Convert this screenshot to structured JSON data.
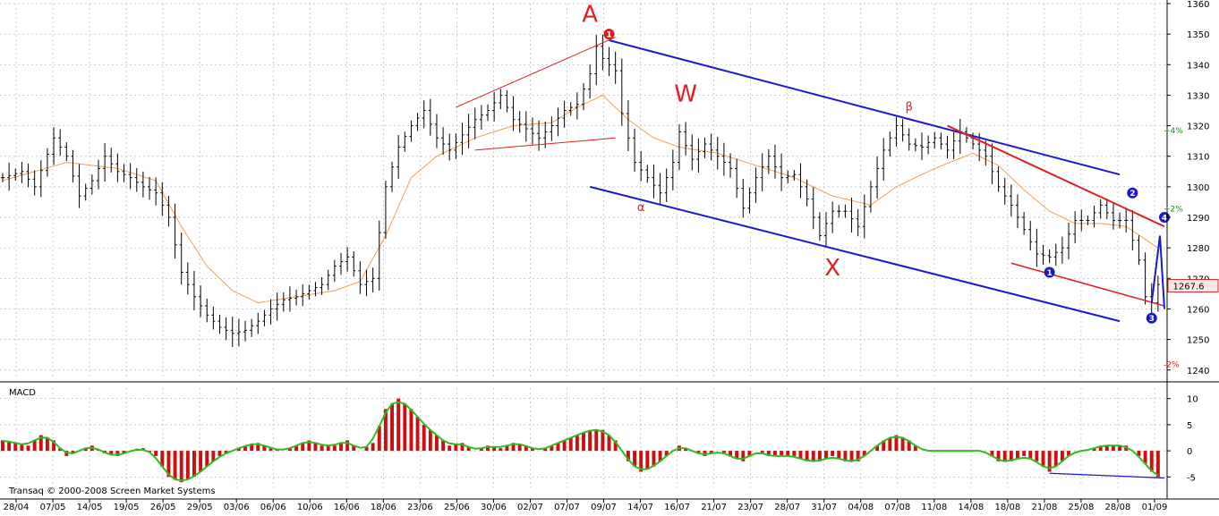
{
  "copyright": "Transaq © 2000-2008 Screen Market Systems",
  "colors": {
    "background": "#ffffff",
    "grid": "#b8b8b8",
    "candles": "#000000",
    "moving_average": "#f0a050",
    "channel_blue": "#1a1acc",
    "trend_red": "#dd2020",
    "macd_positive": "#cc1010",
    "macd_negative": "#cc1010",
    "macd_signal": "#33bb22",
    "last_price_box": "#ffe6e6"
  },
  "chart_data": [
    {
      "type": "candlestick",
      "title": "",
      "y_axis_side": "right",
      "ylim": [
        1237,
        1360
      ],
      "y_ticks": [
        1240,
        1250,
        1260,
        1270,
        1280,
        1290,
        1300,
        1310,
        1320,
        1330,
        1340,
        1350,
        1360
      ],
      "x_tick_labels": [
        "28/04",
        "07/05",
        "14/05",
        "19/05",
        "26/05",
        "29/05",
        "03/06",
        "06/06",
        "10/06",
        "16/06",
        "18/06",
        "23/06",
        "25/06",
        "30/06",
        "02/07",
        "07/07",
        "09/07",
        "14/07",
        "16/07",
        "21/07",
        "23/07",
        "28/07",
        "31/07",
        "04/08",
        "07/08",
        "11/08",
        "14/08",
        "18/08",
        "21/08",
        "25/08",
        "28/08",
        "01/09"
      ],
      "grid": true,
      "last_price": "1267.6",
      "percent_marks": [
        "+4%",
        "+2%",
        "-2%"
      ],
      "percent_mark_values": [
        1318.4,
        1292.8,
        1241.9
      ],
      "price_path": [
        [
          0,
          1303
        ],
        [
          3,
          1305
        ],
        [
          5,
          1300
        ],
        [
          8,
          1316
        ],
        [
          10,
          1310
        ],
        [
          12,
          1297
        ],
        [
          14,
          1302
        ],
        [
          16,
          1310
        ],
        [
          18,
          1305
        ],
        [
          20,
          1303
        ],
        [
          22,
          1300
        ],
        [
          24,
          1298
        ],
        [
          26,
          1290
        ],
        [
          28,
          1272
        ],
        [
          30,
          1264
        ],
        [
          32,
          1258
        ],
        [
          34,
          1254
        ],
        [
          36,
          1252
        ],
        [
          38,
          1253
        ],
        [
          40,
          1256
        ],
        [
          42,
          1260
        ],
        [
          44,
          1263
        ],
        [
          46,
          1264
        ],
        [
          48,
          1266
        ],
        [
          50,
          1268
        ],
        [
          52,
          1274
        ],
        [
          54,
          1277
        ],
        [
          56,
          1268
        ],
        [
          58,
          1270
        ],
        [
          60,
          1300
        ],
        [
          62,
          1313
        ],
        [
          64,
          1320
        ],
        [
          66,
          1325
        ],
        [
          68,
          1316
        ],
        [
          70,
          1312
        ],
        [
          72,
          1317
        ],
        [
          74,
          1322
        ],
        [
          76,
          1325
        ],
        [
          78,
          1330
        ],
        [
          80,
          1322
        ],
        [
          82,
          1319
        ],
        [
          84,
          1316
        ],
        [
          86,
          1320
        ],
        [
          88,
          1325
        ],
        [
          90,
          1327
        ],
        [
          92,
          1337
        ],
        [
          93,
          1346
        ],
        [
          94,
          1342
        ],
        [
          96,
          1338
        ],
        [
          97,
          1324
        ],
        [
          99,
          1308
        ],
        [
          101,
          1303
        ],
        [
          103,
          1298
        ],
        [
          105,
          1308
        ],
        [
          106,
          1318
        ],
        [
          108,
          1309
        ],
        [
          110,
          1314
        ],
        [
          112,
          1310
        ],
        [
          114,
          1306
        ],
        [
          116,
          1293
        ],
        [
          118,
          1303
        ],
        [
          120,
          1310
        ],
        [
          122,
          1303
        ],
        [
          124,
          1304
        ],
        [
          126,
          1296
        ],
        [
          128,
          1284
        ],
        [
          130,
          1292
        ],
        [
          132,
          1292
        ],
        [
          134,
          1287
        ],
        [
          136,
          1300
        ],
        [
          138,
          1312
        ],
        [
          140,
          1320
        ],
        [
          142,
          1314
        ],
        [
          144,
          1313
        ],
        [
          146,
          1316
        ],
        [
          148,
          1312
        ],
        [
          150,
          1318
        ],
        [
          152,
          1314
        ],
        [
          154,
          1310
        ],
        [
          156,
          1300
        ],
        [
          158,
          1294
        ],
        [
          160,
          1286
        ],
        [
          162,
          1278
        ],
        [
          164,
          1277
        ],
        [
          166,
          1280
        ],
        [
          168,
          1289
        ],
        [
          170,
          1289
        ],
        [
          172,
          1294
        ],
        [
          174,
          1289
        ],
        [
          176,
          1289
        ],
        [
          178,
          1276
        ],
        [
          179,
          1264
        ],
        [
          180,
          1262
        ],
        [
          181,
          1268
        ]
      ],
      "moving_average_path": [
        [
          0,
          1302
        ],
        [
          10,
          1308
        ],
        [
          18,
          1306
        ],
        [
          24,
          1302
        ],
        [
          28,
          1287
        ],
        [
          32,
          1274
        ],
        [
          36,
          1266
        ],
        [
          40,
          1262
        ],
        [
          46,
          1264
        ],
        [
          52,
          1266
        ],
        [
          56,
          1269
        ],
        [
          60,
          1284
        ],
        [
          64,
          1303
        ],
        [
          68,
          1310
        ],
        [
          74,
          1316
        ],
        [
          80,
          1320
        ],
        [
          86,
          1321
        ],
        [
          90,
          1326
        ],
        [
          94,
          1330
        ],
        [
          98,
          1322
        ],
        [
          102,
          1316
        ],
        [
          106,
          1313
        ],
        [
          112,
          1311
        ],
        [
          118,
          1307
        ],
        [
          124,
          1303
        ],
        [
          130,
          1297
        ],
        [
          136,
          1294
        ],
        [
          140,
          1300
        ],
        [
          146,
          1306
        ],
        [
          152,
          1311
        ],
        [
          156,
          1307
        ],
        [
          160,
          1299
        ],
        [
          164,
          1292
        ],
        [
          168,
          1288
        ],
        [
          172,
          1288
        ],
        [
          176,
          1287
        ],
        [
          181,
          1280
        ]
      ],
      "wave_labels": [
        {
          "text": "A",
          "x": 92,
          "y": 1354
        },
        {
          "text": "W",
          "x": 107,
          "y": 1328
        },
        {
          "text": "X",
          "x": 130,
          "y": 1271
        },
        {
          "text": "α",
          "x": 100,
          "y": 1292
        },
        {
          "text": "β",
          "x": 142,
          "y": 1325
        }
      ],
      "circled_markers": [
        {
          "text": "1",
          "x": 95,
          "y": 1350,
          "color": "red"
        },
        {
          "text": "1",
          "x": 164,
          "y": 1272,
          "color": "blue"
        },
        {
          "text": "2",
          "x": 177,
          "y": 1298,
          "color": "blue"
        },
        {
          "text": "3",
          "x": 180,
          "y": 1257,
          "color": "blue"
        },
        {
          "text": "4",
          "x": 182,
          "y": 1290,
          "color": "blue"
        }
      ]
    },
    {
      "type": "bar",
      "title": "MACD",
      "y_axis_side": "right",
      "ylim": [
        -7,
        12
      ],
      "y_ticks": [
        -5,
        0,
        5,
        10
      ],
      "histogram_path": [
        [
          0,
          2
        ],
        [
          4,
          1
        ],
        [
          6,
          3
        ],
        [
          8,
          2
        ],
        [
          10,
          -1
        ],
        [
          12,
          0
        ],
        [
          14,
          1
        ],
        [
          16,
          -0.5
        ],
        [
          18,
          -1
        ],
        [
          20,
          0
        ],
        [
          22,
          0.5
        ],
        [
          24,
          -1
        ],
        [
          26,
          -5
        ],
        [
          28,
          -6
        ],
        [
          30,
          -5
        ],
        [
          32,
          -3
        ],
        [
          34,
          -1
        ],
        [
          36,
          0
        ],
        [
          38,
          1
        ],
        [
          40,
          1.5
        ],
        [
          42,
          0.5
        ],
        [
          44,
          0
        ],
        [
          46,
          1
        ],
        [
          48,
          2
        ],
        [
          50,
          1
        ],
        [
          52,
          1
        ],
        [
          54,
          2
        ],
        [
          56,
          0
        ],
        [
          58,
          1.5
        ],
        [
          60,
          8
        ],
        [
          62,
          10
        ],
        [
          64,
          8
        ],
        [
          66,
          5
        ],
        [
          68,
          3
        ],
        [
          70,
          1
        ],
        [
          72,
          1.5
        ],
        [
          74,
          0
        ],
        [
          76,
          1
        ],
        [
          78,
          0.5
        ],
        [
          80,
          1.5
        ],
        [
          82,
          1
        ],
        [
          84,
          0
        ],
        [
          86,
          1
        ],
        [
          88,
          2
        ],
        [
          90,
          3
        ],
        [
          92,
          4
        ],
        [
          94,
          4
        ],
        [
          96,
          2
        ],
        [
          98,
          -2
        ],
        [
          100,
          -4
        ],
        [
          102,
          -3
        ],
        [
          104,
          -1
        ],
        [
          106,
          1
        ],
        [
          108,
          0
        ],
        [
          110,
          -1
        ],
        [
          112,
          0
        ],
        [
          114,
          -1
        ],
        [
          116,
          -2
        ],
        [
          118,
          0
        ],
        [
          120,
          -1
        ],
        [
          122,
          -1
        ],
        [
          124,
          -1
        ],
        [
          126,
          -2
        ],
        [
          128,
          -2
        ],
        [
          130,
          -1
        ],
        [
          132,
          -2
        ],
        [
          134,
          -2
        ],
        [
          136,
          0
        ],
        [
          138,
          2
        ],
        [
          140,
          3
        ],
        [
          142,
          2
        ],
        [
          144,
          0
        ],
        [
          146,
          0
        ],
        [
          148,
          0
        ],
        [
          150,
          0
        ],
        [
          152,
          0
        ],
        [
          154,
          0
        ],
        [
          156,
          -2
        ],
        [
          158,
          -2
        ],
        [
          160,
          -1
        ],
        [
          162,
          -2
        ],
        [
          164,
          -4
        ],
        [
          166,
          -2
        ],
        [
          168,
          0
        ],
        [
          170,
          0
        ],
        [
          172,
          1
        ],
        [
          174,
          1
        ],
        [
          176,
          1
        ],
        [
          178,
          -1
        ],
        [
          180,
          -4
        ],
        [
          181,
          -5
        ]
      ]
    }
  ]
}
